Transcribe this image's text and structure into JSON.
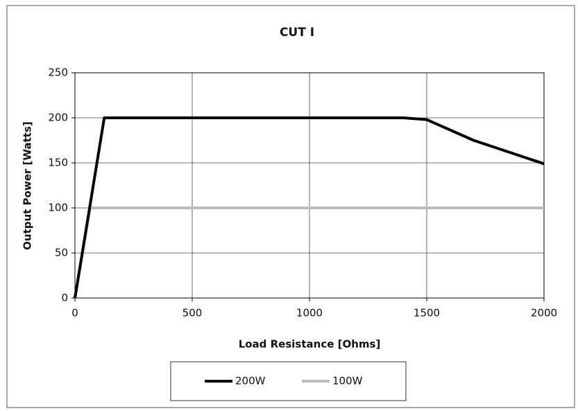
{
  "chart_data": {
    "type": "line",
    "title": "CUT I",
    "xlabel": "Load Resistance [Ohms]",
    "ylabel": "Output Power [Watts]",
    "xlim": [
      0,
      2000
    ],
    "xticks": [
      0,
      500,
      1000,
      1500,
      2000
    ],
    "ylim": [
      0,
      250
    ],
    "yticks": [
      0,
      50,
      100,
      150,
      200,
      250
    ],
    "grid": true,
    "legend": "bottom",
    "series": [
      {
        "name": "200W",
        "color": "#000000",
        "x": [
          0,
          125,
          1400,
          1500,
          1700,
          2000
        ],
        "values": [
          0,
          200,
          200,
          198,
          175,
          149
        ]
      },
      {
        "name": "100W",
        "color": "#bdbdbd",
        "x": [
          0,
          65,
          2000
        ],
        "values": [
          0,
          100,
          100
        ]
      }
    ]
  }
}
